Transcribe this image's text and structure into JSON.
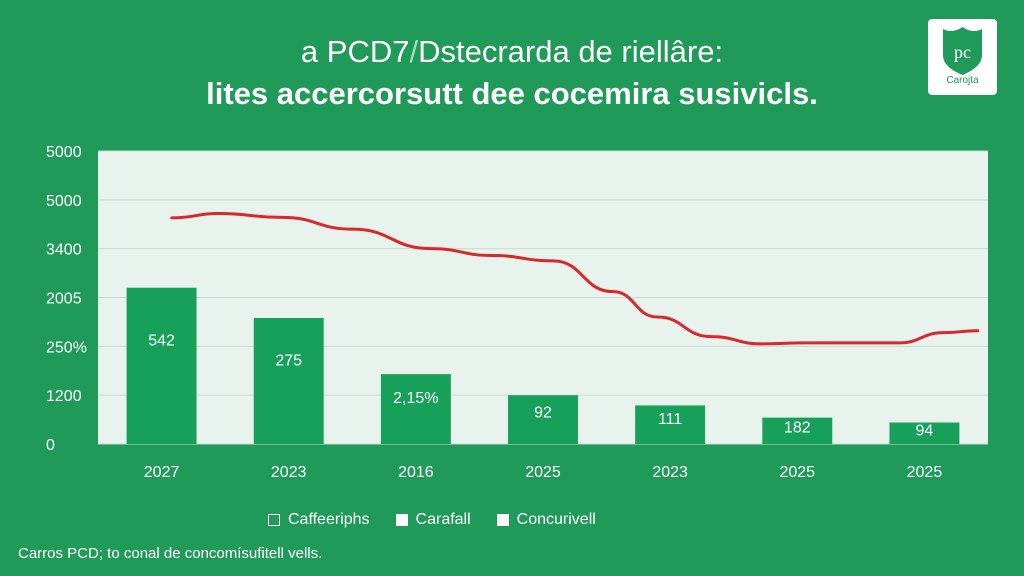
{
  "header": {
    "title_prefix": "a PCD7",
    "title_slash": "/",
    "title_rest": "Dstecrarda de riellâre:",
    "subtitle": "lites accercorsutt dee cocemira susivicls."
  },
  "logo": {
    "mark": "pc",
    "label": "Carojta",
    "icon": "shield-icon"
  },
  "legend": {
    "items": [
      {
        "label": "Caffeeriphs",
        "color": "#1f9a58"
      },
      {
        "label": "Carafall",
        "color": "#ffffff"
      },
      {
        "label": "Concurivell",
        "color": "#ffffff"
      }
    ]
  },
  "footer": {
    "note": "Carros PCD; to conal de concomísufitell vells."
  },
  "colors": {
    "background": "#1f9a58",
    "plot_background": "#e7f3ec",
    "bar": "#17a05a",
    "line": "#d9272a"
  },
  "chart_data": {
    "type": "bar",
    "categories": [
      "2027",
      "2023",
      "2016",
      "2025",
      "2023",
      "2025",
      "2025"
    ],
    "y_tick_labels": [
      "5000",
      "5000",
      "3400",
      "2005",
      "250%",
      "1200",
      "0"
    ],
    "y_tick_values": [
      6,
      5,
      4,
      3,
      2,
      1,
      0
    ],
    "ylim": [
      0,
      6
    ],
    "grid": true,
    "legend_position": "bottom",
    "series": [
      {
        "kind": "bar",
        "values": [
          3.2,
          2.58,
          1.43,
          1.0,
          0.79,
          0.54,
          0.44
        ],
        "labels": [
          "542",
          "275",
          "2,15%",
          "92",
          "111",
          "182",
          "94"
        ]
      },
      {
        "kind": "line",
        "x": [
          0.58,
          0.95,
          1.45,
          2.0,
          2.62,
          3.1,
          3.58,
          4.05,
          4.4,
          4.82,
          5.22,
          5.55,
          5.85,
          6.3,
          6.65,
          6.92
        ],
        "values": [
          4.63,
          4.72,
          4.64,
          4.4,
          4.0,
          3.86,
          3.75,
          3.12,
          2.6,
          2.2,
          2.05,
          2.07,
          2.07,
          2.07,
          2.28,
          2.32
        ]
      }
    ]
  }
}
